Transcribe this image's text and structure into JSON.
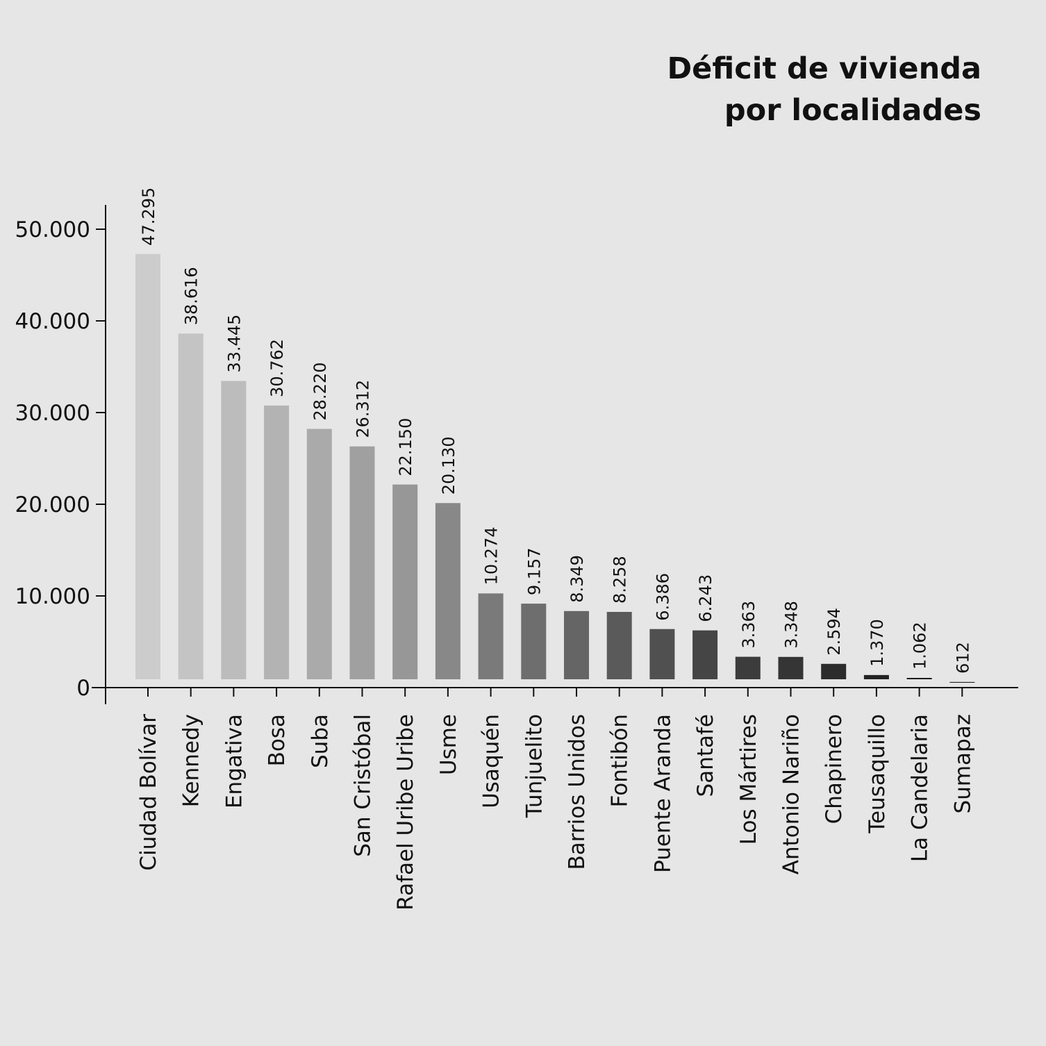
{
  "chart_data": {
    "type": "bar",
    "title": [
      "Déficit de vivienda",
      "por localidades"
    ],
    "xlabel": "",
    "ylabel": "",
    "ylim": [
      0,
      50000
    ],
    "y_ticks": [
      {
        "value": 0,
        "label": "0"
      },
      {
        "value": 10000,
        "label": "10.000"
      },
      {
        "value": 20000,
        "label": "20.000"
      },
      {
        "value": 30000,
        "label": "30.000"
      },
      {
        "value": 40000,
        "label": "40.000"
      },
      {
        "value": 50000,
        "label": "50.000"
      }
    ],
    "grid": false,
    "categories": [
      "Ciudad Bolívar",
      "Kennedy",
      "Engativa",
      "Bosa",
      "Suba",
      "San Cristóbal",
      "Rafael Uribe Uribe",
      "Usme",
      "Usaquén",
      "Tunjuelito",
      "Barrios Unidos",
      "Fontibón",
      "Puente Aranda",
      "Santafé",
      "Los Mártires",
      "Antonio Nariño",
      "Chapinero",
      "Teusaquillo",
      "La Candelaria",
      "Sumapaz"
    ],
    "values": [
      47295,
      38616,
      33445,
      30762,
      28220,
      26312,
      22150,
      20130,
      10274,
      9157,
      8349,
      8258,
      6386,
      6243,
      3363,
      3348,
      2594,
      1370,
      1062,
      612
    ],
    "value_labels": [
      "47.295",
      "38.616",
      "33.445",
      "30.762",
      "28.220",
      "26.312",
      "22.150",
      "20.130",
      "10.274",
      "9.157",
      "8.349",
      "8.258",
      "6.386",
      "6.243",
      "3.363",
      "3.348",
      "2.594",
      "1.370",
      "1.062",
      "612"
    ],
    "bar_colors": [
      "#cccccc",
      "#c4c4c4",
      "#bcbcbc",
      "#b3b3b3",
      "#aaaaaa",
      "#a0a0a0",
      "#979797",
      "#888888",
      "#7a7a7a",
      "#6e6e6e",
      "#656565",
      "#5a5a5a",
      "#505050",
      "#454545",
      "#3c3c3c",
      "#353535",
      "#2c2c2c",
      "#232323",
      "#1a1a1a",
      "#0e0e0e"
    ]
  }
}
